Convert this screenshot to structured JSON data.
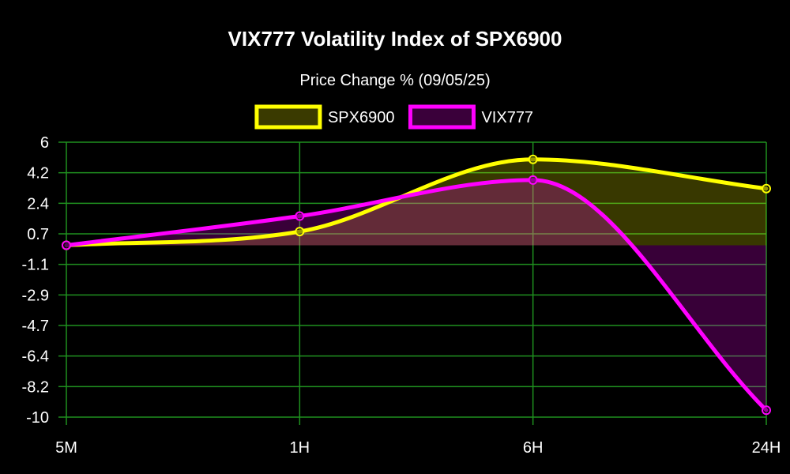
{
  "chart_data": {
    "type": "line",
    "title": "VIX777 Volatility Index of SPX6900",
    "subtitle": "Price Change % (09/05/25)",
    "categories": [
      "5M",
      "1H",
      "6H",
      "24H"
    ],
    "y_ticks": [
      "6",
      "4.2",
      "2.4",
      "0.7",
      "-1.1",
      "-2.9",
      "-4.7",
      "-6.4",
      "-8.2",
      "-10"
    ],
    "ylim": [
      -10,
      6
    ],
    "grid": true,
    "legend_position": "top-center",
    "series": [
      {
        "name": "SPX6900",
        "values": [
          0,
          0.8,
          5,
          3.3
        ],
        "color": "#ffff00",
        "fill": "#3a3a00"
      },
      {
        "name": "VIX777",
        "values": [
          0,
          1.7,
          3.8,
          -9.6
        ],
        "color": "#ff00ff",
        "fill": "#3a003a"
      }
    ],
    "background_color": "#000000",
    "grid_color": "#1f8f1f",
    "overlap_fill": "#5a3535"
  }
}
